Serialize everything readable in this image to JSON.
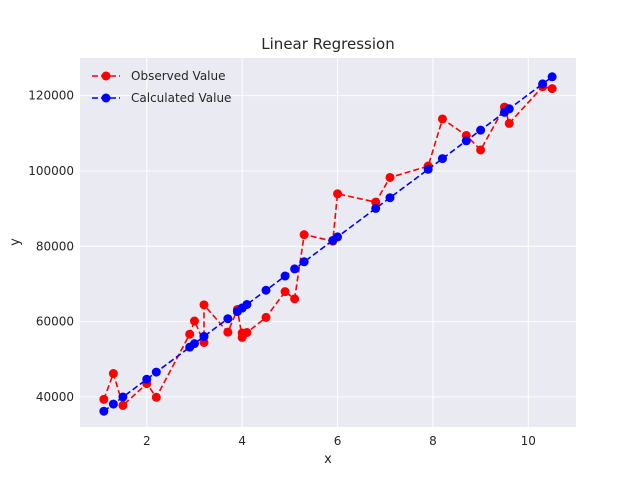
{
  "chart_data": {
    "type": "line",
    "title": "Linear Regression",
    "xlabel": "x",
    "ylabel": "y",
    "xlim": [
      0.6,
      11.0
    ],
    "ylim": [
      32000,
      130000
    ],
    "xticks": [
      2,
      4,
      6,
      8,
      10
    ],
    "yticks": [
      40000,
      60000,
      80000,
      100000,
      120000
    ],
    "grid": true,
    "legend_position": "top-left",
    "x": [
      1.1,
      1.3,
      1.5,
      2.0,
      2.2,
      2.9,
      3.0,
      3.2,
      3.2,
      3.7,
      3.9,
      4.0,
      4.0,
      4.1,
      4.5,
      4.9,
      5.1,
      5.3,
      5.9,
      6.0,
      6.8,
      7.1,
      7.9,
      8.2,
      8.7,
      9.0,
      9.5,
      9.6,
      10.3,
      10.5
    ],
    "series": [
      {
        "name": "Observed Value",
        "color": "#ff0000",
        "values": [
          39343,
          46205,
          37731,
          43525,
          39891,
          56642,
          60150,
          54445,
          64445,
          57189,
          63218,
          55794,
          56957,
          57081,
          61111,
          67938,
          66029,
          83088,
          81363,
          93940,
          91738,
          98273,
          101302,
          113812,
          109431,
          105582,
          116969,
          112635,
          122391,
          121872
        ]
      },
      {
        "name": "Calculated Value",
        "color": "#0000ff",
        "values": [
          36188,
          38078,
          39968,
          44693,
          46583,
          53198,
          54143,
          56033,
          56033,
          60758,
          62648,
          63593,
          63593,
          64538,
          68318,
          72098,
          73988,
          75878,
          81547,
          82492,
          90052,
          92887,
          100447,
          103282,
          108007,
          110842,
          115567,
          116512,
          123126,
          125016
        ]
      }
    ]
  }
}
